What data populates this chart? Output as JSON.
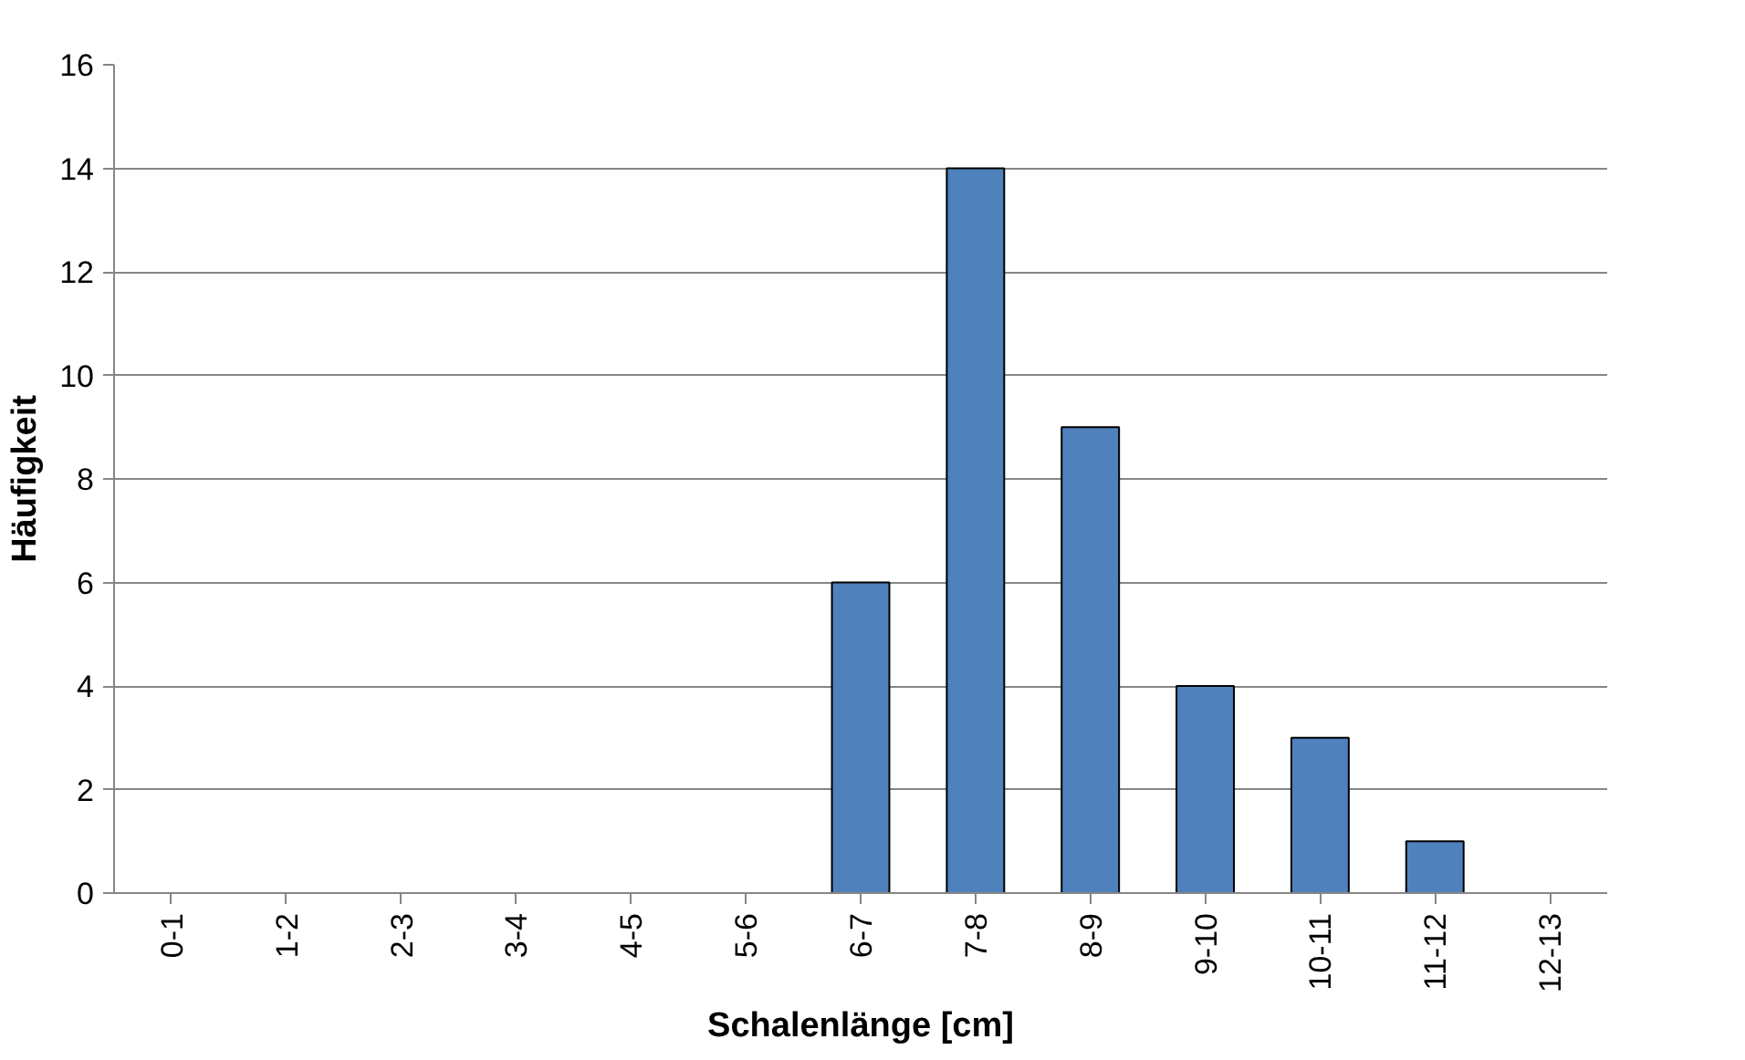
{
  "chart_data": {
    "type": "bar",
    "xlabel": "Schalenlänge [cm]",
    "ylabel": "Häufigkeit",
    "categories": [
      "0-1",
      "1-2",
      "2-3",
      "3-4",
      "4-5",
      "5-6",
      "6-7",
      "7-8",
      "8-9",
      "9-10",
      "10-11",
      "11-12",
      "12-13"
    ],
    "values": [
      0,
      0,
      0,
      0,
      0,
      0,
      6,
      14,
      9,
      4,
      3,
      1,
      0
    ],
    "color": "#4f81bd",
    "ylim": [
      0,
      16
    ],
    "yticks": [
      0,
      2,
      4,
      6,
      8,
      10,
      12,
      14,
      16
    ],
    "grid": "y"
  }
}
